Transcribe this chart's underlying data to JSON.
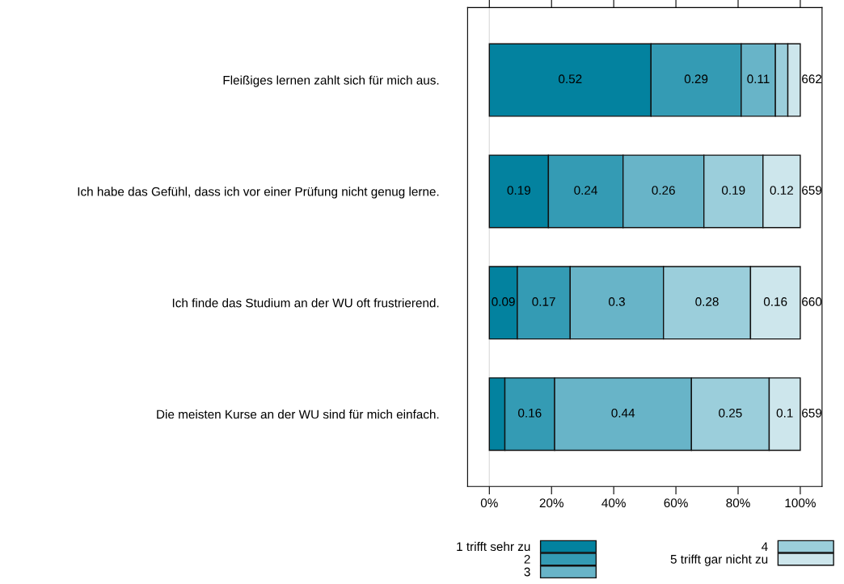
{
  "chart_data": {
    "type": "bar",
    "orientation": "horizontal",
    "stacked": true,
    "categories": [
      "Fleißiges lernen zahlt sich für mich aus.",
      "Ich habe das Gefühl, dass ich vor einer Prüfung nicht genug lerne.",
      "Ich finde das Studium an der WU oft frustrierend.",
      "Die meisten Kurse an der WU sind für mich einfach."
    ],
    "series": [
      {
        "name": "1 trifft sehr zu",
        "color": "#03829f",
        "values": [
          0.52,
          0.19,
          0.09,
          0.05
        ],
        "value_labels": [
          "0.52",
          "0.19",
          "0.09",
          null
        ]
      },
      {
        "name": "2",
        "color": "#349bb4",
        "values": [
          0.29,
          0.24,
          0.17,
          0.16
        ],
        "value_labels": [
          "0.29",
          "0.24",
          "0.17",
          "0.16"
        ]
      },
      {
        "name": "3",
        "color": "#68b4c8",
        "values": [
          0.11,
          0.26,
          0.3,
          0.44
        ],
        "value_labels": [
          "0.11",
          "0.26",
          "0.3",
          "0.44"
        ]
      },
      {
        "name": "4",
        "color": "#9bcedb",
        "values": [
          0.04,
          0.19,
          0.28,
          0.25
        ],
        "value_labels": [
          null,
          "0.19",
          "0.28",
          "0.25"
        ]
      },
      {
        "name": "5 trifft gar nicht zu",
        "color": "#cde6ec",
        "values": [
          0.04,
          0.12,
          0.16,
          0.1
        ],
        "value_labels": [
          null,
          "0.12",
          "0.16",
          "0.1"
        ]
      }
    ],
    "xlim": [
      -0.07,
      1.07
    ],
    "xticks": [
      {
        "value": 0,
        "label": "0%"
      },
      {
        "value": 0.2,
        "label": "20%"
      },
      {
        "value": 0.4,
        "label": "40%"
      },
      {
        "value": 0.6,
        "label": "60%"
      },
      {
        "value": 0.8,
        "label": "80%"
      },
      {
        "value": 1,
        "label": "100%"
      }
    ],
    "ref_lines": [
      {
        "axis": "x",
        "value": 0,
        "color": "#e0e0e0"
      }
    ],
    "annotations": [
      "662",
      "659",
      "660",
      "659"
    ],
    "legend": "bottom",
    "grid": false
  }
}
